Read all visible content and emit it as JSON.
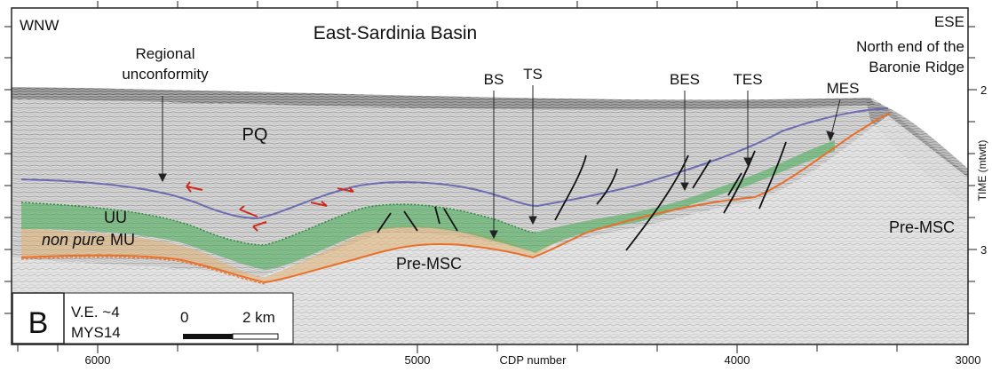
{
  "header": {
    "left_direction": "WNW",
    "right_direction": "ESE",
    "basin_title": "East-Sardinia Basin"
  },
  "annotations": {
    "regional_unconformity_line1": "Regional",
    "regional_unconformity_line2": "unconformity",
    "ridge_line1": "North end of the",
    "ridge_line2": "Baronie Ridge",
    "bs": "BS",
    "ts": "TS",
    "bes": "BES",
    "tes": "TES",
    "mes": "MES"
  },
  "units": {
    "pq": "PQ",
    "uu": "UU",
    "mu_italic": "non pure",
    "mu": "MU",
    "pre_msc_center": "Pre-MSC",
    "pre_msc_right": "Pre-MSC"
  },
  "info_box": {
    "panel_letter": "B",
    "vertical_exaggeration": "V.E. ~4",
    "profile_name": "MYS14",
    "scale_zero": "0",
    "scale_length": "2 km"
  },
  "x_axis": {
    "title": "CDP number",
    "ticks": [
      "6000",
      "5000",
      "4000",
      "3000"
    ]
  },
  "y_axis": {
    "title": "TIME (mtwtt)",
    "ticks": [
      "2",
      "3"
    ]
  },
  "colors": {
    "regional_unconformity": "#6b6bb0",
    "upper_unit": "#4fae5b",
    "mobile_unit": "#e0b070",
    "base_surface": "#e8702a",
    "faults": "#111111",
    "arrows": "#cc2a1a",
    "seismic_background": "#cfcfcf"
  }
}
